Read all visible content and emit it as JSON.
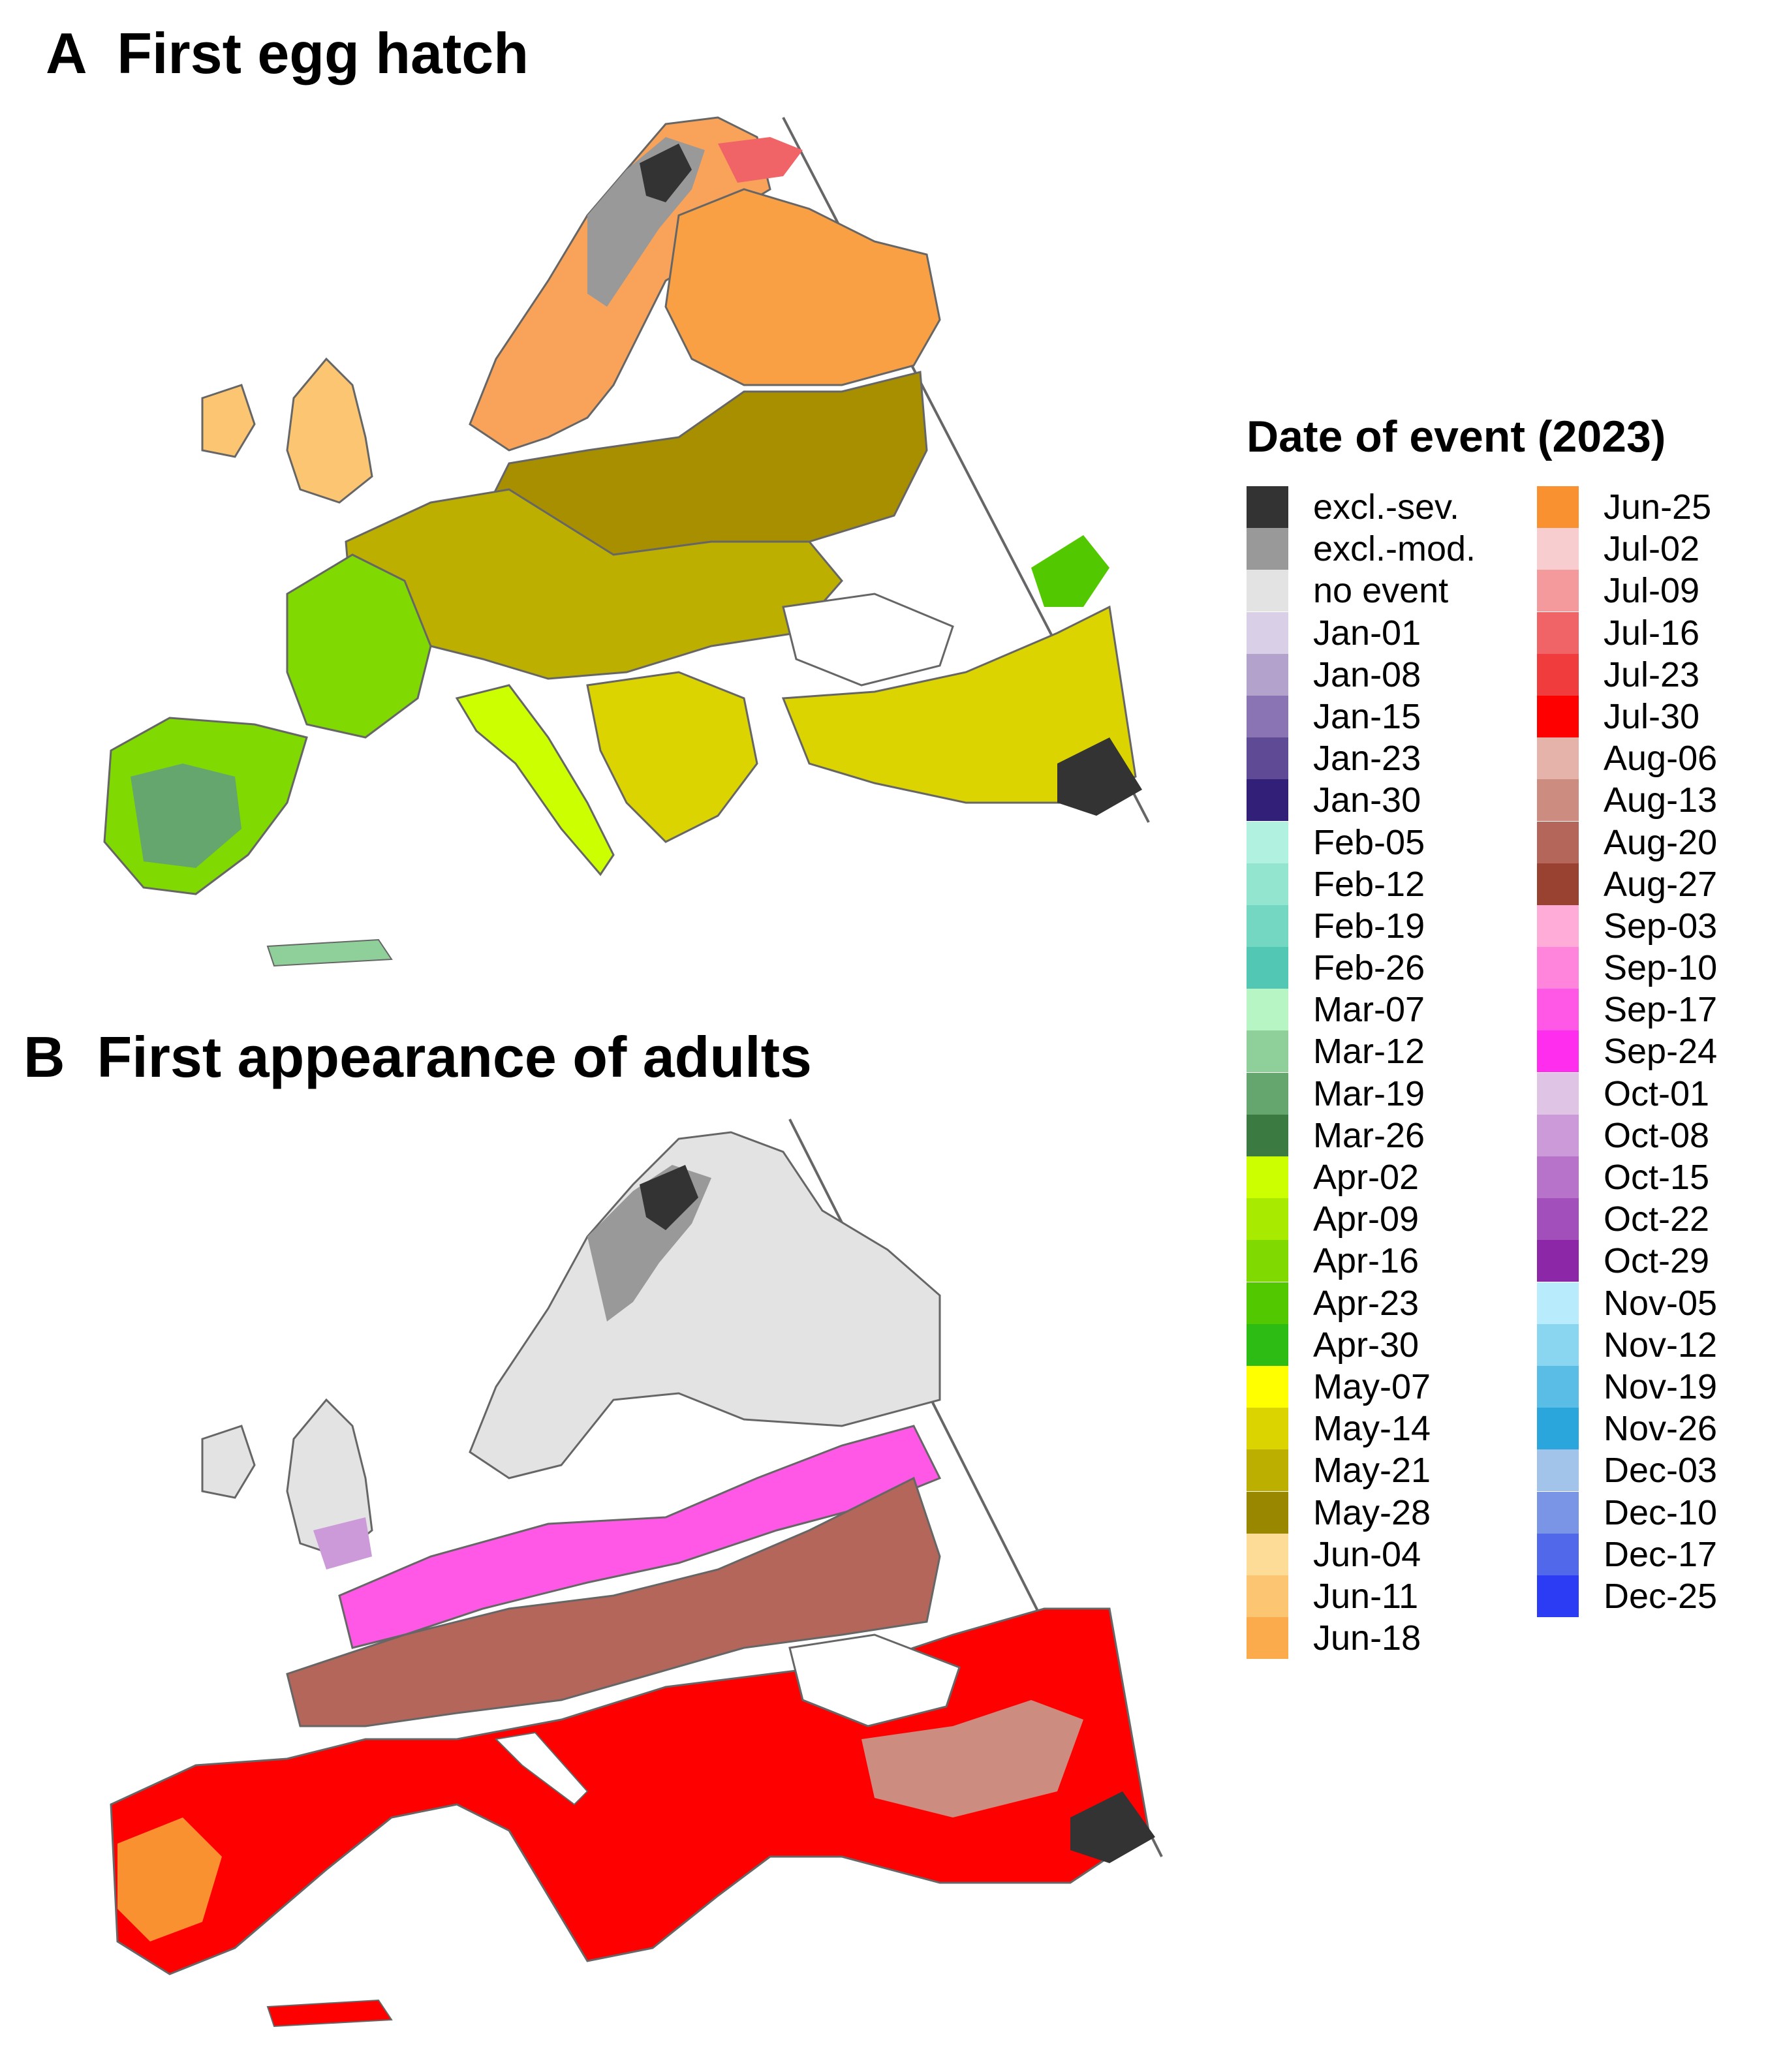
{
  "panels": [
    {
      "letter": "A",
      "title": "First egg hatch"
    },
    {
      "letter": "B",
      "title": "First appearance of adults"
    }
  ],
  "legend": {
    "title": "Date of event (2023)",
    "items": [
      {
        "label": "excl.-sev.",
        "color": "#333333"
      },
      {
        "label": "excl.-mod.",
        "color": "#999999"
      },
      {
        "label": "no event",
        "color": "#e3e3e3"
      },
      {
        "label": "Jan-01",
        "color": "#d9d0e8"
      },
      {
        "label": "Jan-08",
        "color": "#b3a3cc"
      },
      {
        "label": "Jan-15",
        "color": "#8a74b3"
      },
      {
        "label": "Jan-23",
        "color": "#5f4a96"
      },
      {
        "label": "Jan-30",
        "color": "#321f78"
      },
      {
        "label": "Feb-05",
        "color": "#b0f1e0"
      },
      {
        "label": "Feb-12",
        "color": "#93e5d0"
      },
      {
        "label": "Feb-19",
        "color": "#73d7c2"
      },
      {
        "label": "Feb-26",
        "color": "#52c7b4"
      },
      {
        "label": "Mar-07",
        "color": "#b8f5c4"
      },
      {
        "label": "Mar-12",
        "color": "#8fd09a"
      },
      {
        "label": "Mar-19",
        "color": "#64a66e"
      },
      {
        "label": "Mar-26",
        "color": "#3b7a40"
      },
      {
        "label": "Apr-02",
        "color": "#ccff00"
      },
      {
        "label": "Apr-09",
        "color": "#a8eb00"
      },
      {
        "label": "Apr-16",
        "color": "#80d900"
      },
      {
        "label": "Apr-23",
        "color": "#52c800"
      },
      {
        "label": "Apr-30",
        "color": "#2cbc14"
      },
      {
        "label": "May-07",
        "color": "#ffff00"
      },
      {
        "label": "May-14",
        "color": "#dcd400"
      },
      {
        "label": "May-21",
        "color": "#bcaf00"
      },
      {
        "label": "May-28",
        "color": "#9a8700"
      },
      {
        "label": "Jun-04",
        "color": "#fddc98"
      },
      {
        "label": "Jun-11",
        "color": "#fcc572"
      },
      {
        "label": "Jun-18",
        "color": "#fbaa4c"
      },
      {
        "label": "Jun-25",
        "color": "#f99130"
      },
      {
        "label": "Jul-02",
        "color": "#f7cdcf"
      },
      {
        "label": "Jul-09",
        "color": "#f59a9c"
      },
      {
        "label": "Jul-16",
        "color": "#f06468"
      },
      {
        "label": "Jul-23",
        "color": "#f03c3c"
      },
      {
        "label": "Jul-30",
        "color": "#ff0000"
      },
      {
        "label": "Aug-06",
        "color": "#e5b3a9"
      },
      {
        "label": "Aug-13",
        "color": "#cc8c80"
      },
      {
        "label": "Aug-20",
        "color": "#b36659"
      },
      {
        "label": "Aug-27",
        "color": "#9a4232"
      },
      {
        "label": "Sep-03",
        "color": "#ffadd8"
      },
      {
        "label": "Sep-10",
        "color": "#ff85dc"
      },
      {
        "label": "Sep-17",
        "color": "#ff58e6"
      },
      {
        "label": "Sep-24",
        "color": "#ff2eee"
      },
      {
        "label": "Oct-01",
        "color": "#e0c4e6"
      },
      {
        "label": "Oct-08",
        "color": "#cc99d9"
      },
      {
        "label": "Oct-15",
        "color": "#b773c9"
      },
      {
        "label": "Oct-22",
        "color": "#a24ebb"
      },
      {
        "label": "Oct-29",
        "color": "#8c28a8"
      },
      {
        "label": "Nov-05",
        "color": "#b8ebfb"
      },
      {
        "label": "Nov-12",
        "color": "#8ad5f0"
      },
      {
        "label": "Nov-19",
        "color": "#5abde6"
      },
      {
        "label": "Nov-26",
        "color": "#2aa6dc"
      },
      {
        "label": "Dec-03",
        "color": "#a3c4ea"
      },
      {
        "label": "Dec-10",
        "color": "#7a95e6"
      },
      {
        "label": "Dec-17",
        "color": "#5268eb"
      },
      {
        "label": "Dec-25",
        "color": "#2c3cf5"
      }
    ]
  }
}
